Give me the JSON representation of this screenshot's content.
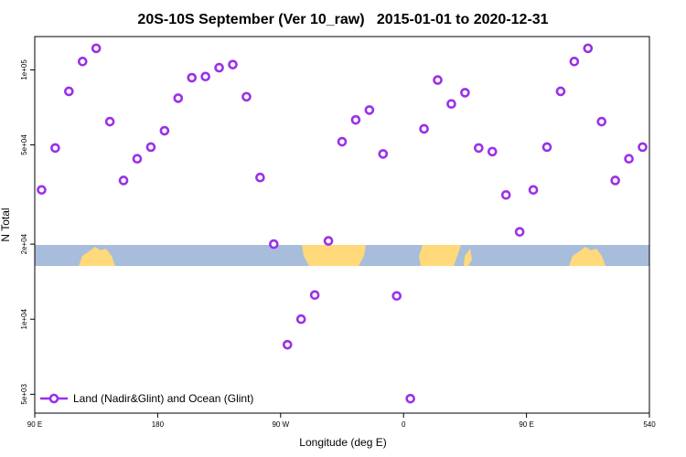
{
  "chart_data": {
    "type": "scatter",
    "title": "20S-10S September (Ver 10_raw)   2015-01-01 to 2020-12-31",
    "x_label": "Longitude (deg E)",
    "y_label": "N Total",
    "log_y": true,
    "legend_position": "bottom-left",
    "xlim": [
      90,
      540
    ],
    "xticks": [
      {
        "value": 90,
        "label": "90 E"
      },
      180,
      {
        "value": 270,
        "label": "90 W"
      },
      {
        "value": 360,
        "label": "0"
      },
      {
        "value": 450,
        "label": "90 E"
      },
      540
    ],
    "ylim": [
      4200,
      136000
    ],
    "yticks": [
      {
        "value": 5000,
        "label": "5e+03"
      },
      {
        "value": 10000,
        "label": "1e+04"
      },
      {
        "value": 20000,
        "label": "2e+04"
      },
      {
        "value": 50000,
        "label": "5e+04"
      },
      {
        "value": 100000,
        "label": "1e+05"
      }
    ],
    "series": [
      {
        "name": "Land (Nadir&Glint) and Ocean (Glint)",
        "color": "#9b30e6",
        "x": [
          95,
          105,
          115,
          125,
          135,
          145,
          155,
          165,
          175,
          185,
          195,
          205,
          215,
          225,
          235,
          245,
          255,
          265,
          275,
          285,
          295,
          305,
          315,
          325,
          335,
          345,
          355,
          365,
          375,
          385,
          395,
          405,
          415,
          425,
          435,
          445,
          455,
          465,
          475,
          485,
          495,
          505,
          515,
          525,
          535
        ],
        "values": [
          33000,
          48600,
          82000,
          108000,
          122000,
          62000,
          36000,
          44000,
          49000,
          57000,
          77000,
          93000,
          94000,
          102000,
          105000,
          78000,
          37000,
          20000,
          7900,
          10000,
          12500,
          20600,
          51500,
          63000,
          69000,
          46000,
          12400,
          4800,
          58000,
          91000,
          73000,
          81000,
          48600,
          47000,
          31500,
          22400,
          33000,
          49000,
          82000,
          108000,
          122000,
          62000,
          36000,
          44000,
          49000
        ]
      }
    ]
  }
}
